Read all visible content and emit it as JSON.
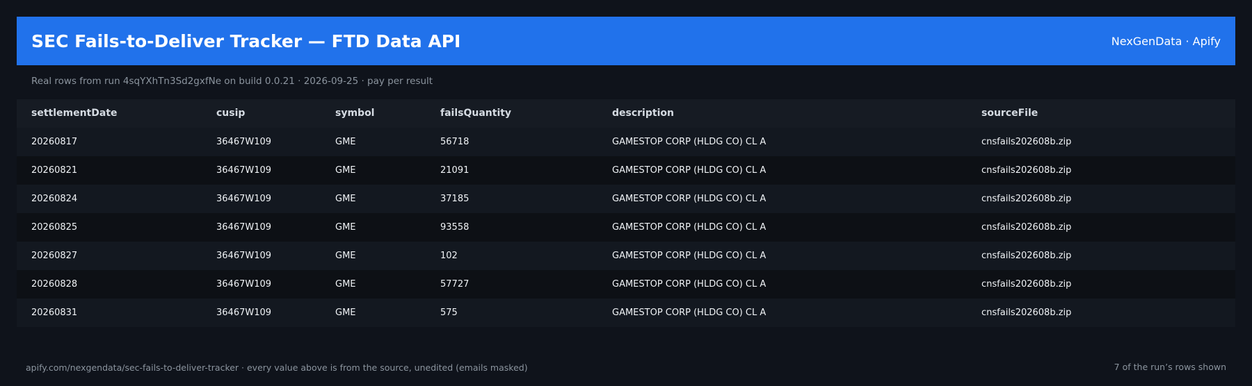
{
  "header": {
    "title": "SEC Fails-to-Deliver Tracker — FTD Data API",
    "brand": "NexGenData · Apify"
  },
  "subtitle": "Real rows from run 4sqYXhTn3Sd2gxfNe on build 0.0.21 · 2026-09-25 · pay per result",
  "table": {
    "columns": [
      "settlementDate",
      "cusip",
      "symbol",
      "failsQuantity",
      "description",
      "sourceFile"
    ],
    "rows": [
      [
        "20260817",
        "36467W109",
        "GME",
        "56718",
        "GAMESTOP CORP (HLDG CO) CL A",
        "cnsfails202608b.zip"
      ],
      [
        "20260821",
        "36467W109",
        "GME",
        "21091",
        "GAMESTOP CORP (HLDG CO) CL A",
        "cnsfails202608b.zip"
      ],
      [
        "20260824",
        "36467W109",
        "GME",
        "37185",
        "GAMESTOP CORP (HLDG CO) CL A",
        "cnsfails202608b.zip"
      ],
      [
        "20260825",
        "36467W109",
        "GME",
        "93558",
        "GAMESTOP CORP (HLDG CO) CL A",
        "cnsfails202608b.zip"
      ],
      [
        "20260827",
        "36467W109",
        "GME",
        "102",
        "GAMESTOP CORP (HLDG CO) CL A",
        "cnsfails202608b.zip"
      ],
      [
        "20260828",
        "36467W109",
        "GME",
        "57727",
        "GAMESTOP CORP (HLDG CO) CL A",
        "cnsfails202608b.zip"
      ],
      [
        "20260831",
        "36467W109",
        "GME",
        "575",
        "GAMESTOP CORP (HLDG CO) CL A",
        "cnsfails202608b.zip"
      ]
    ]
  },
  "footer": {
    "left": "apify.com/nexgendata/sec-fails-to-deliver-tracker  ·  every value above is from the source, unedited (emails masked)",
    "right": "7 of the run’s rows shown"
  },
  "colors": {
    "background": "#0f131b",
    "header_bg": "#2172eb",
    "muted_text": "#8b949e"
  }
}
